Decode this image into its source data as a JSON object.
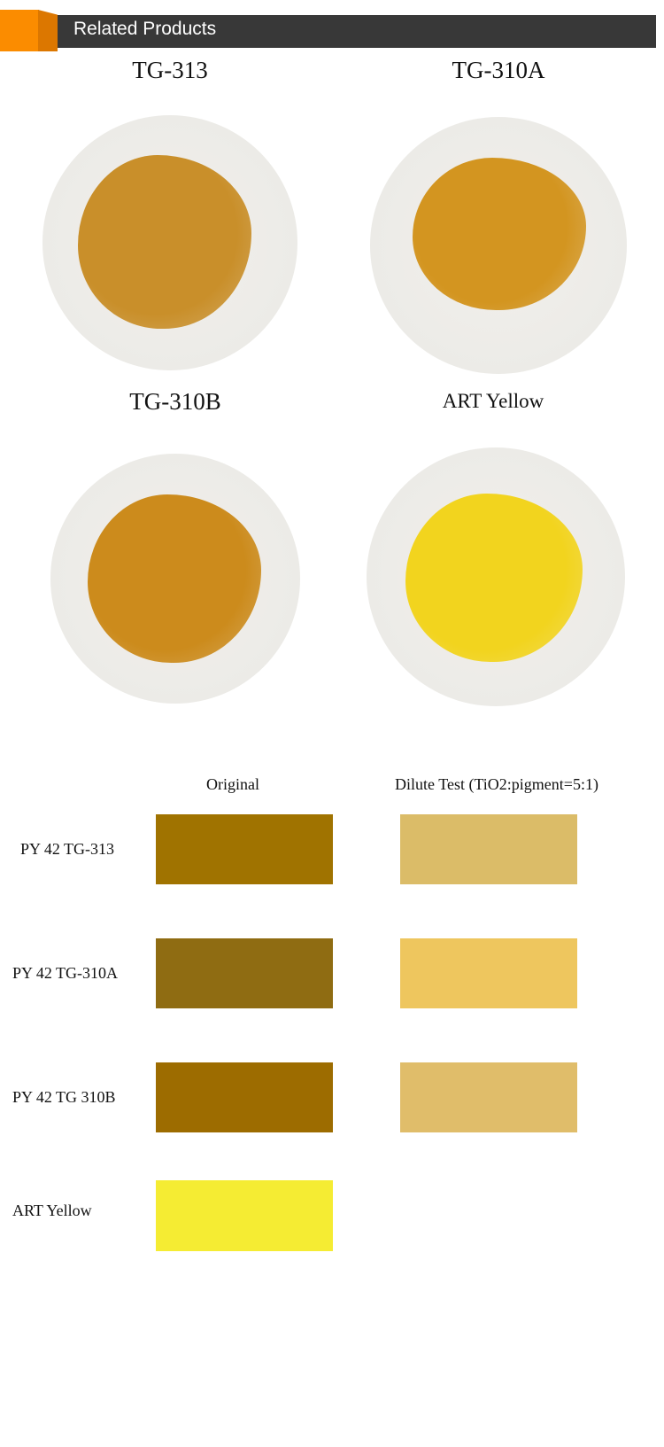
{
  "header": {
    "title": "Related Products",
    "accent": "#fb8c00",
    "bar_color": "#383838"
  },
  "products": [
    {
      "name": "TG-313",
      "powder_color": "#c98f2a"
    },
    {
      "name": "TG-310A",
      "powder_color": "#d39520"
    },
    {
      "name": "TG-310B",
      "powder_color": "#cc8b1c"
    },
    {
      "name": "ART Yellow",
      "powder_color": "#f2d41e"
    }
  ],
  "table": {
    "columns": [
      "Original",
      "Dilute Test (TiO2:pigment=5:1)"
    ],
    "rows": [
      {
        "label": "PY 42 TG-313",
        "original": "#a07300",
        "dilute": "#dbbc68"
      },
      {
        "label": "PY 42 TG-310A",
        "original": "#8f6c12",
        "dilute": "#eec65e"
      },
      {
        "label": "PY 42 TG 310B",
        "original": "#9d6c00",
        "dilute": "#e0bd6a"
      },
      {
        "label": "ART Yellow",
        "original": "#f5ec33",
        "dilute": null
      }
    ]
  }
}
